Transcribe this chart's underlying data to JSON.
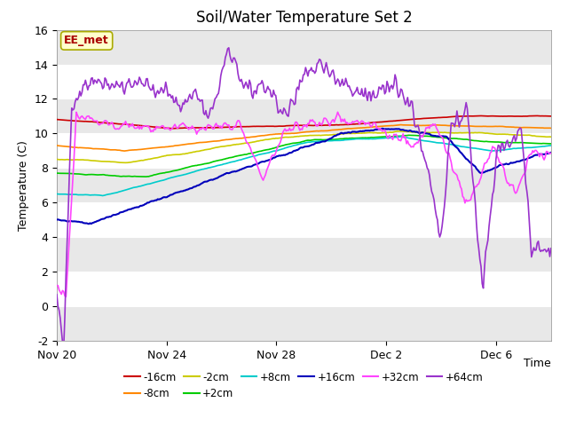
{
  "title": "Soil/Water Temperature Set 2",
  "ylabel": "Temperature (C)",
  "ylim": [
    -2,
    16
  ],
  "yticks": [
    -2,
    0,
    2,
    4,
    6,
    8,
    10,
    12,
    14,
    16
  ],
  "xlim": [
    0,
    18
  ],
  "xtick_pos": [
    0,
    4,
    8,
    12,
    16
  ],
  "xtick_labels": [
    "Nov 20",
    "Nov 24",
    "Nov 28",
    "Dec 2",
    "Dec 6"
  ],
  "fig_bg": "#ffffff",
  "plot_bg": "#ffffff",
  "band_light": "#ffffff",
  "band_dark": "#e8e8e8",
  "series": [
    {
      "label": "-16cm",
      "color": "#cc0000",
      "lw": 1.2
    },
    {
      "label": "-8cm",
      "color": "#ff8800",
      "lw": 1.2
    },
    {
      "label": "-2cm",
      "color": "#cccc00",
      "lw": 1.2
    },
    {
      "label": "+2cm",
      "color": "#00cc00",
      "lw": 1.2
    },
    {
      "label": "+8cm",
      "color": "#00cccc",
      "lw": 1.2
    },
    {
      "label": "+16cm",
      "color": "#0000bb",
      "lw": 1.5
    },
    {
      "label": "+32cm",
      "color": "#ff44ff",
      "lw": 1.2
    },
    {
      "label": "+64cm",
      "color": "#9933cc",
      "lw": 1.2
    }
  ],
  "annotation_text": "EE_met",
  "annotation_color": "#aa0000",
  "annotation_bg": "#ffffcc",
  "annotation_border": "#aaaa00",
  "time_label": "Time",
  "title_fontsize": 12,
  "label_fontsize": 9,
  "tick_fontsize": 9
}
